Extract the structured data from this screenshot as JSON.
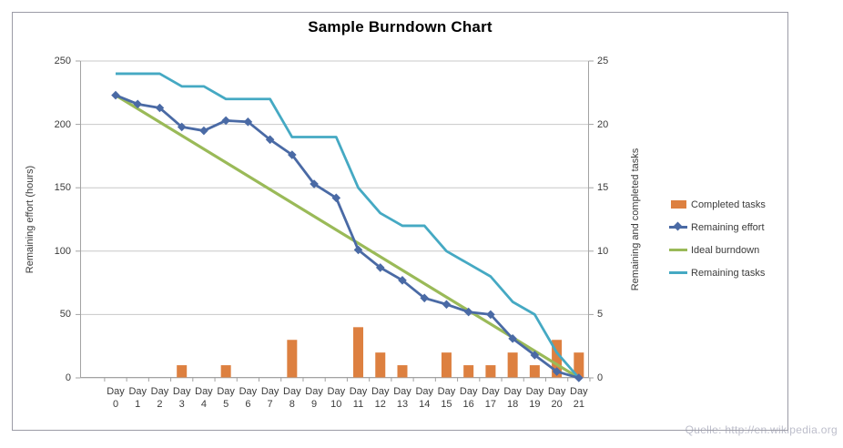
{
  "title": "Sample Burndown Chart",
  "watermark": "Quelle: http://en.wikipedia.org",
  "colors": {
    "completed_tasks_bar": "#DD8040",
    "remaining_effort_line": "#4A6AA5",
    "ideal_burndown_line": "#9ABA58",
    "remaining_tasks_line": "#45A9C3",
    "gridline": "#C8C8C8",
    "axis": "#A3A3A3",
    "tick_text": "#3b3b3b",
    "title_text": "#000000",
    "watermark_text": "#BDBECB"
  },
  "chart_data": {
    "type": "combo",
    "categories": [
      "Day 0",
      "Day 1",
      "Day 2",
      "Day 3",
      "Day 4",
      "Day 5",
      "Day 6",
      "Day 7",
      "Day 8",
      "Day 9",
      "Day 10",
      "Day 11",
      "Day 12",
      "Day 13",
      "Day 14",
      "Day 15",
      "Day 16",
      "Day 17",
      "Day 18",
      "Day 19",
      "Day 20",
      "Day 21"
    ],
    "title": "Sample Burndown Chart",
    "y_left": {
      "label": "Remaining effort (hours)",
      "ticks": [
        250,
        200,
        150,
        100,
        50,
        0
      ],
      "range": [
        0,
        250
      ],
      "grid": true
    },
    "y_right": {
      "label": "Remaining and completed tasks",
      "ticks": [
        25,
        20,
        15,
        10,
        5,
        0
      ],
      "range": [
        0,
        25
      ]
    },
    "legend_position": "right",
    "series": [
      {
        "name": "Completed tasks",
        "type": "bar",
        "axis": "right",
        "values": [
          0,
          0,
          0,
          1,
          0,
          1,
          0,
          0,
          3,
          0,
          0,
          4,
          2,
          1,
          0,
          2,
          1,
          1,
          2,
          1,
          3,
          2
        ]
      },
      {
        "name": "Remaining effort",
        "type": "line",
        "axis": "left",
        "marker": "diamond",
        "values": [
          223,
          216,
          213,
          198,
          195,
          203,
          202,
          188,
          176,
          153,
          142,
          101,
          87,
          77,
          63,
          58,
          52,
          50,
          31,
          18,
          5,
          0
        ]
      },
      {
        "name": "Ideal burndown",
        "type": "line",
        "axis": "left",
        "x": [
          0,
          21
        ],
        "values": [
          223,
          0
        ]
      },
      {
        "name": "Remaining tasks",
        "type": "line",
        "axis": "right",
        "values": [
          24,
          24,
          24,
          23,
          23,
          22,
          22,
          22,
          19,
          19,
          19,
          15,
          13,
          12,
          12,
          10,
          9,
          8,
          6,
          5,
          2,
          0
        ]
      }
    ]
  }
}
